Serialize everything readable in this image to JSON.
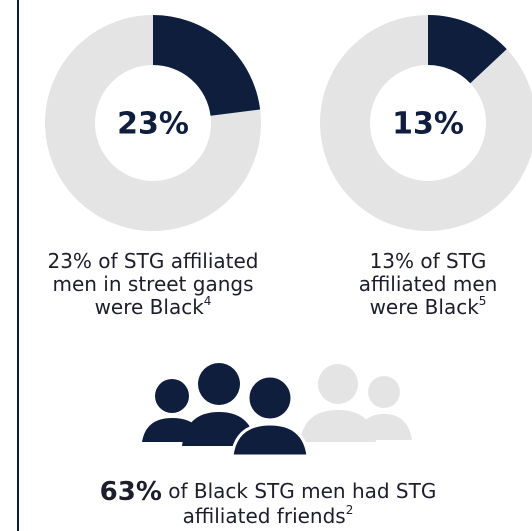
{
  "chart_data": [
    {
      "type": "donut",
      "values": [
        23
      ],
      "value_labels": [
        "23%"
      ],
      "color": "#0f1e3d",
      "track_color": "#e4e4e4",
      "caption": [
        "23% of STG affiliated",
        "men in street gangs",
        "were Black"
      ],
      "footnote": "4"
    },
    {
      "type": "donut",
      "values": [
        13
      ],
      "value_labels": [
        "13%"
      ],
      "color": "#0f1e3d",
      "track_color": "#e4e4e4",
      "caption": [
        "13% of STG",
        "affiliated men",
        "were Black"
      ],
      "footnote": "5"
    }
  ],
  "stat": {
    "figure": "63%",
    "text": [
      " of Black STG men had STG",
      "affiliated friends"
    ],
    "footnote": "2"
  }
}
